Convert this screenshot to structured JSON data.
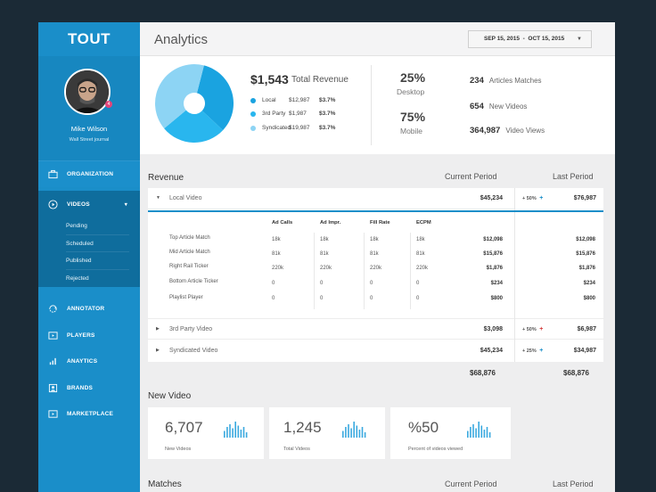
{
  "app": {
    "logo": "TOUT"
  },
  "user": {
    "name": "Mike Wilson",
    "org": "Wall Street journal",
    "notification_count": "4"
  },
  "sidebar": {
    "organization": "ORGANIZATION",
    "videos": "VIDEOS",
    "video_sub": [
      "Pending",
      "Scheduled",
      "Published",
      "Rejected"
    ],
    "items": [
      {
        "label": "ANNOTATOR",
        "icon": "annotator-icon"
      },
      {
        "label": "PLAYERS",
        "icon": "players-icon"
      },
      {
        "label": "ANAYTICS",
        "icon": "analytics-icon"
      },
      {
        "label": "BRANDS",
        "icon": "brands-icon"
      },
      {
        "label": "MARKETPLACE",
        "icon": "marketplace-icon"
      }
    ]
  },
  "header": {
    "title": "Analytics",
    "date_range": "SEP 15, 2015  -  OCT 15, 2015"
  },
  "summary": {
    "total_value": "$1,543",
    "total_label": "Total Revenue",
    "legend": [
      {
        "name": "Local",
        "amount": "$12,987",
        "pct": "$3.7%",
        "color": "#1aa3e0"
      },
      {
        "name": "3rd Party",
        "amount": "$1,987",
        "pct": "$3.7%",
        "color": "#29b6ee"
      },
      {
        "name": "Syndicated",
        "amount": "$19,987",
        "pct": "$3.7%",
        "color": "#8dd4f4"
      }
    ],
    "pie": [
      {
        "value": 33,
        "color": "#1aa3e0"
      },
      {
        "value": 27,
        "color": "#29b6ee"
      },
      {
        "value": 40,
        "color": "#8dd4f4"
      }
    ],
    "desktop_pct": "25%",
    "desktop_label": "Desktop",
    "mobile_pct": "75%",
    "mobile_label": "Mobile",
    "stats": [
      {
        "value": "234",
        "label": "Articles Matches"
      },
      {
        "value": "654",
        "label": "New Videos"
      },
      {
        "value": "364,987",
        "label": "Video Views"
      }
    ]
  },
  "revenue": {
    "title": "Revenue",
    "current_period": "Current Period",
    "last_period": "Last Period",
    "rows": [
      {
        "name": "Local Video",
        "current": "$45,234",
        "change": "+ 50%",
        "change_mark": "+",
        "change_color": "#1a8ec9",
        "last": "$76,987"
      },
      {
        "name": "3rd Party Video",
        "current": "$3,098",
        "change": "+ 50%",
        "change_mark": "+",
        "change_color": "#d33a3a",
        "last": "$6,987"
      },
      {
        "name": "Syndicated Video",
        "current": "$45,234",
        "change": "+ 25%",
        "change_mark": "+",
        "change_color": "#1a8ec9",
        "last": "$34,987"
      }
    ],
    "detail_headers": [
      "Ad Calls",
      "Ad Impr.",
      "Fill Rate",
      "ECPM"
    ],
    "detail_rows": [
      {
        "name": "Top Article Match",
        "cells": [
          "18k",
          "18k",
          "18k",
          "18k"
        ],
        "current": "$12,098",
        "last": "$12,098"
      },
      {
        "name": "Mid Article Match",
        "cells": [
          "81k",
          "81k",
          "81k",
          "81k"
        ],
        "current": "$15,876",
        "last": "$15,876"
      },
      {
        "name": "Right Rail Ticker",
        "cells": [
          "220k",
          "220k",
          "220k",
          "220k"
        ],
        "current": "$1,876",
        "last": "$1,876"
      },
      {
        "name": "Bottom Article Ticker",
        "cells": [
          "0",
          "0",
          "0",
          "0"
        ],
        "current": "$234",
        "last": "$234"
      },
      {
        "name": "Playlist Player",
        "cells": [
          "0",
          "0",
          "0",
          "0"
        ],
        "current": "$800",
        "last": "$800"
      }
    ],
    "total_current": "$68,876",
    "total_last": "$68,876"
  },
  "new_video": {
    "title": "New Video",
    "cards": [
      {
        "value": "6,707",
        "label": "New Videos",
        "bars": [
          5,
          8,
          10,
          7,
          12,
          9,
          6,
          8,
          4
        ]
      },
      {
        "value": "1,245",
        "label": "Total Videos",
        "bars": [
          5,
          8,
          10,
          7,
          12,
          9,
          6,
          8,
          4
        ]
      },
      {
        "value": "%50",
        "label": "Percent of videos viewed",
        "bars": [
          5,
          8,
          10,
          7,
          12,
          9,
          6,
          8,
          4
        ]
      }
    ]
  },
  "matches": {
    "title": "Matches",
    "current_period": "Current Period",
    "last_period": "Last Period"
  }
}
